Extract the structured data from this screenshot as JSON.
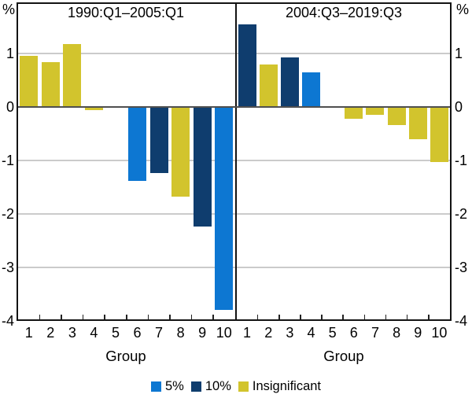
{
  "chart_data": {
    "type": "bar",
    "unit": "%",
    "xlabel": "Group",
    "categories": [
      "1",
      "2",
      "3",
      "4",
      "5",
      "6",
      "7",
      "8",
      "9",
      "10"
    ],
    "yticks": [
      1,
      0,
      -1,
      -2,
      -3,
      -4
    ],
    "gridlines": [
      1,
      -1,
      -2,
      -3
    ],
    "ylim": [
      -4,
      1.95
    ],
    "legend": [
      {
        "key": "5",
        "label": "5%",
        "color": "#0d77d2"
      },
      {
        "key": "10",
        "label": "10%",
        "color": "#0f3d6e"
      },
      {
        "key": "insignificant",
        "label": "Insignificant",
        "color": "#d2c42d"
      }
    ],
    "colors": {
      "5": "#0d77d2",
      "10": "#0f3d6e",
      "insignificant": "#d2c42d"
    },
    "panels": [
      {
        "title": "1990:Q1–2005:Q1",
        "values": [
          0.95,
          0.84,
          1.18,
          -0.06,
          0,
          -1.38,
          -1.24,
          -1.67,
          -2.24,
          -3.79
        ],
        "significance": [
          "insignificant",
          "insignificant",
          "insignificant",
          "insignificant",
          "none",
          "5",
          "10",
          "insignificant",
          "10",
          "5"
        ]
      },
      {
        "title": "2004:Q3–2019:Q3",
        "values": [
          1.54,
          0.8,
          0.92,
          0.65,
          0,
          -0.22,
          -0.14,
          -0.34,
          -0.61,
          -1.03
        ],
        "significance": [
          "10",
          "insignificant",
          "10",
          "5",
          "none",
          "insignificant",
          "insignificant",
          "insignificant",
          "insignificant",
          "insignificant"
        ]
      }
    ]
  }
}
